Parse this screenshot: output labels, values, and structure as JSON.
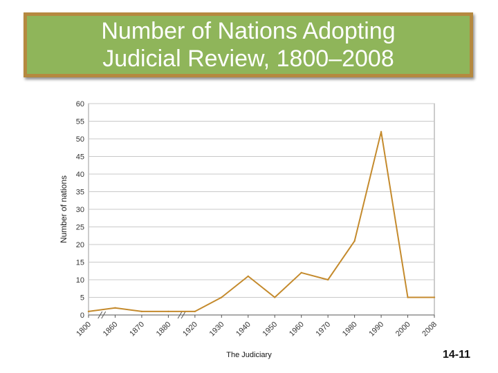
{
  "slide": {
    "title_line1": "Number of Nations Adopting",
    "title_line2": "Judicial Review, 1800–2008",
    "footer_text": "The Judiciary",
    "page_number": "14-11"
  },
  "colors": {
    "title_bg": "#8fb55a",
    "title_border": "#b5893f",
    "series_line": "#c48a2c",
    "grid": "#c8c8c8"
  },
  "chart_data": {
    "type": "line",
    "title": "",
    "xlabel": "",
    "ylabel": "Number of nations",
    "ylim": [
      0,
      60
    ],
    "yticks": [
      0,
      5,
      10,
      15,
      20,
      25,
      30,
      35,
      40,
      45,
      50,
      55,
      60
    ],
    "grid": true,
    "axis_break_after": [
      "1800",
      "1880"
    ],
    "categories": [
      "1800",
      "1860",
      "1870",
      "1880",
      "1920",
      "1930",
      "1940",
      "1950",
      "1960",
      "1970",
      "1980",
      "1990",
      "2000",
      "2008"
    ],
    "series": [
      {
        "values": [
          1,
          2,
          1,
          1,
          1,
          5,
          11,
          5,
          12,
          10,
          21,
          52,
          5,
          5
        ]
      }
    ]
  }
}
